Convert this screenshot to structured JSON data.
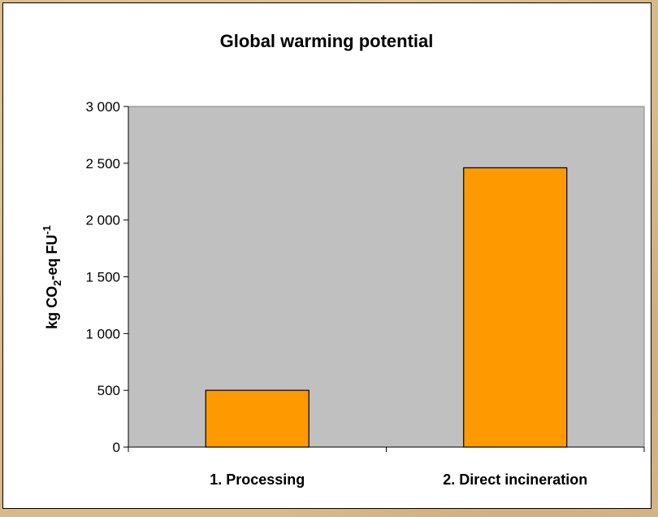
{
  "chart_data": {
    "type": "bar",
    "title": "Global warming potential",
    "ylabel": {
      "main": "kg CO",
      "sub": "2",
      "mid": "-eq FU",
      "sup": "-1"
    },
    "xlabel": "",
    "categories": [
      "1. Processing",
      "2. Direct incineration"
    ],
    "values": [
      500,
      2460
    ],
    "ylim": [
      0,
      3000
    ],
    "yticks": [
      0,
      500,
      1000,
      1500,
      2000,
      2500,
      3000
    ],
    "ytick_labels": [
      "0",
      "500",
      "1 000",
      "1 500",
      "2 000",
      "2 500",
      "3 000"
    ],
    "grid": false,
    "legend": "none",
    "colors": {
      "plot_background": "#c0c0c0",
      "bar_fill": "#ff9900",
      "bar_stroke": "#000000"
    }
  }
}
